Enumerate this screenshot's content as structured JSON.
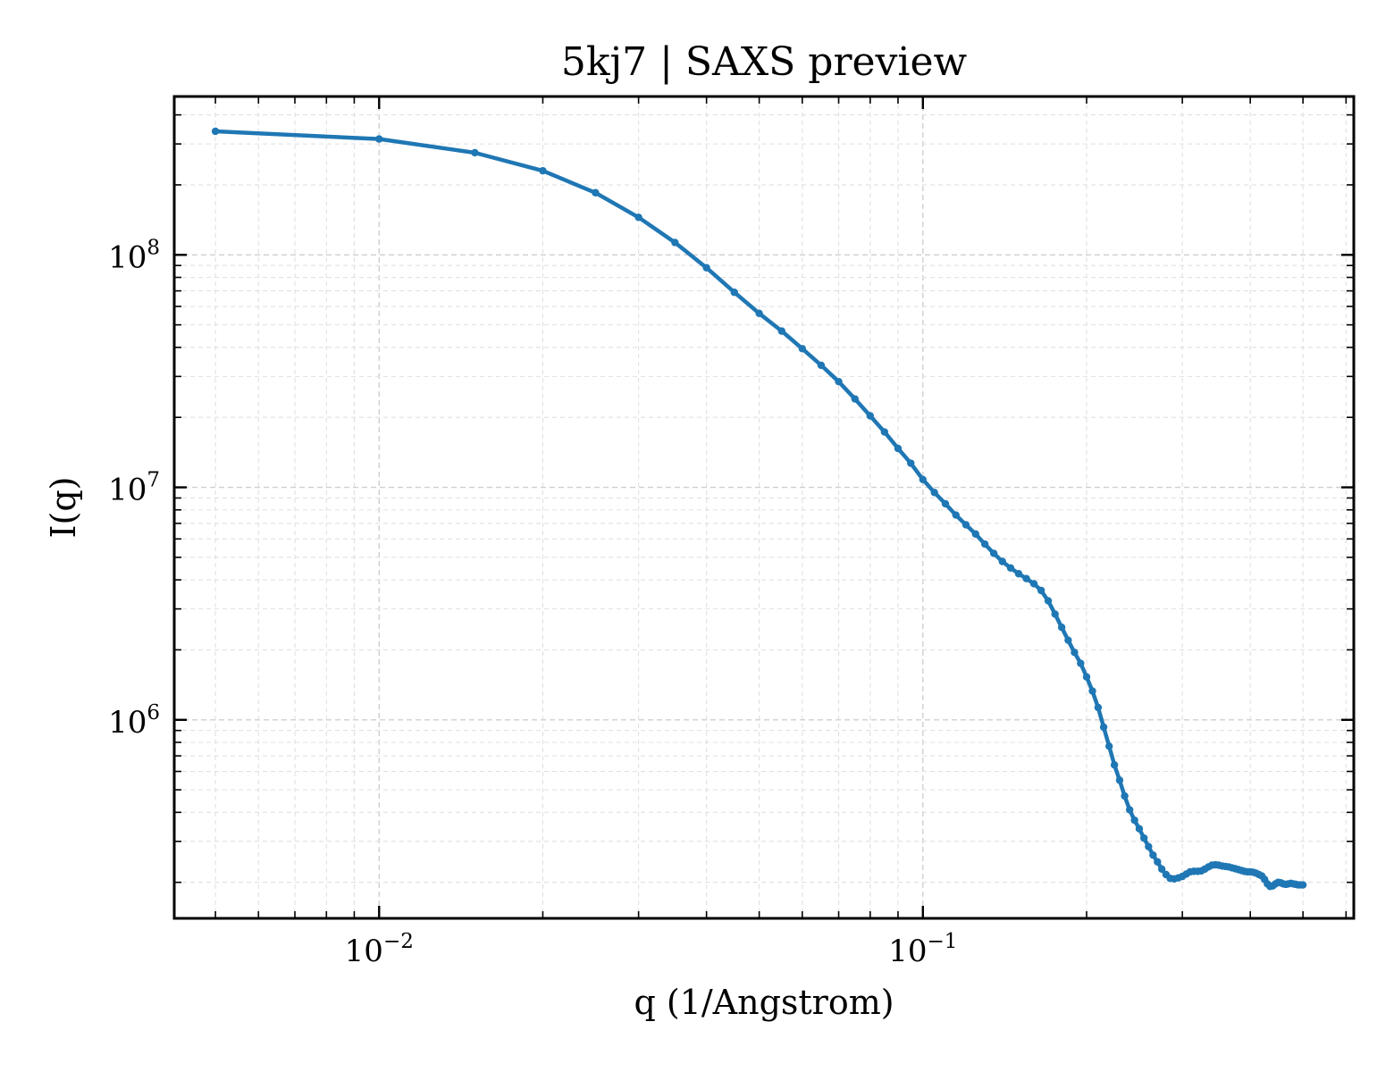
{
  "chart_data": {
    "type": "line",
    "title": "5kj7 | SAXS preview",
    "xlabel": "q (1/Angstrom)",
    "ylabel": "I(q)",
    "xscale": "log",
    "yscale": "log",
    "xlim": [
      0.0042,
      0.62
    ],
    "ylim": [
      140000,
      480000000
    ],
    "grid": true,
    "legend": "none",
    "color": "#1f77b4",
    "x_ticks": [
      {
        "value": 0.01,
        "base": "10",
        "exp": "−2"
      },
      {
        "value": 0.1,
        "base": "10",
        "exp": "−1"
      }
    ],
    "y_ticks": [
      {
        "value": 1000000,
        "base": "10",
        "exp": "6"
      },
      {
        "value": 10000000,
        "base": "10",
        "exp": "7"
      },
      {
        "value": 100000000,
        "base": "10",
        "exp": "8"
      }
    ],
    "series": [
      {
        "x": [
          0.005,
          0.01,
          0.015,
          0.02,
          0.025,
          0.03,
          0.035,
          0.04,
          0.045,
          0.05,
          0.055,
          0.06,
          0.065,
          0.07,
          0.075,
          0.08,
          0.085,
          0.09,
          0.095,
          0.1,
          0.105,
          0.11,
          0.115,
          0.12,
          0.125,
          0.13,
          0.135,
          0.14,
          0.145,
          0.15,
          0.155,
          0.16,
          0.165,
          0.17,
          0.175,
          0.18,
          0.185,
          0.19,
          0.195,
          0.2,
          0.205,
          0.21,
          0.215,
          0.22,
          0.225,
          0.23,
          0.235,
          0.24,
          0.245,
          0.25,
          0.255,
          0.26,
          0.265,
          0.27,
          0.275,
          0.28,
          0.285,
          0.29,
          0.295,
          0.3,
          0.305,
          0.31,
          0.315,
          0.32,
          0.325,
          0.33,
          0.335,
          0.34,
          0.345,
          0.35,
          0.355,
          0.36,
          0.365,
          0.37,
          0.375,
          0.38,
          0.385,
          0.39,
          0.395,
          0.4,
          0.405,
          0.41,
          0.415,
          0.42,
          0.425,
          0.43,
          0.435,
          0.44,
          0.445,
          0.45,
          0.455,
          0.46,
          0.465,
          0.47,
          0.475,
          0.48,
          0.485,
          0.49,
          0.495,
          0.5
        ],
        "y": [
          340000000,
          315000000,
          275000000,
          230000000,
          185000000,
          145000000,
          113000000,
          88000000,
          69000000,
          56000000,
          47000000,
          39500000,
          33500000,
          28500000,
          24000000,
          20300000,
          17300000,
          14700000,
          12700000,
          10800000,
          9500000,
          8500000,
          7600000,
          6900000,
          6300000,
          5700000,
          5200000,
          4800000,
          4500000,
          4250000,
          4050000,
          3850000,
          3600000,
          3250000,
          2850000,
          2500000,
          2200000,
          1950000,
          1750000,
          1530000,
          1330000,
          1130000,
          930000,
          770000,
          640000,
          550000,
          470000,
          410000,
          370000,
          340000,
          310000,
          285000,
          262000,
          245000,
          228000,
          216000,
          208000,
          207000,
          209000,
          212000,
          217000,
          222000,
          223000,
          223000,
          224000,
          228000,
          233000,
          237000,
          238000,
          237000,
          235000,
          234000,
          233000,
          231000,
          229000,
          227000,
          225000,
          223000,
          222000,
          222000,
          221000,
          219000,
          216000,
          213000,
          206000,
          197000,
          192000,
          193000,
          197000,
          200000,
          199000,
          197000,
          196000,
          197000,
          198000,
          197000,
          196000,
          195000,
          195000,
          195000
        ]
      }
    ]
  }
}
